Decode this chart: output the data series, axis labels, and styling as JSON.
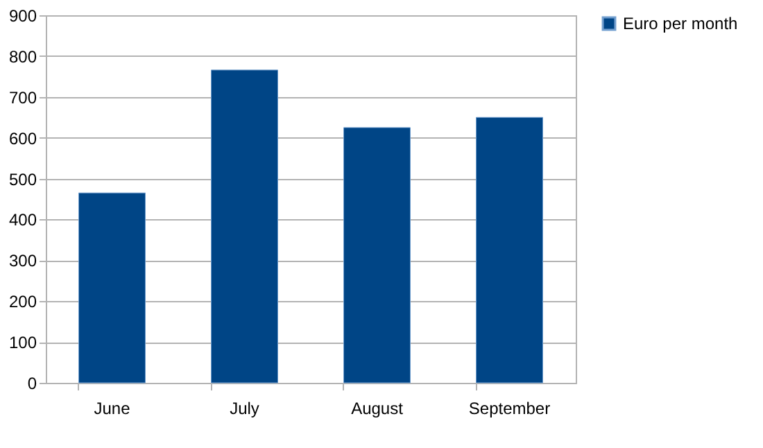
{
  "chart_data": {
    "type": "bar",
    "categories": [
      "June",
      "July",
      "August",
      "September"
    ],
    "series": [
      {
        "name": "Euro per month",
        "color": "#004586",
        "values": [
          465,
          766,
          625,
          650
        ]
      }
    ],
    "ylim": [
      0,
      900
    ],
    "yticks": [
      0,
      100,
      200,
      300,
      400,
      500,
      600,
      700,
      800,
      900
    ],
    "grid": "y",
    "legend": "right"
  }
}
